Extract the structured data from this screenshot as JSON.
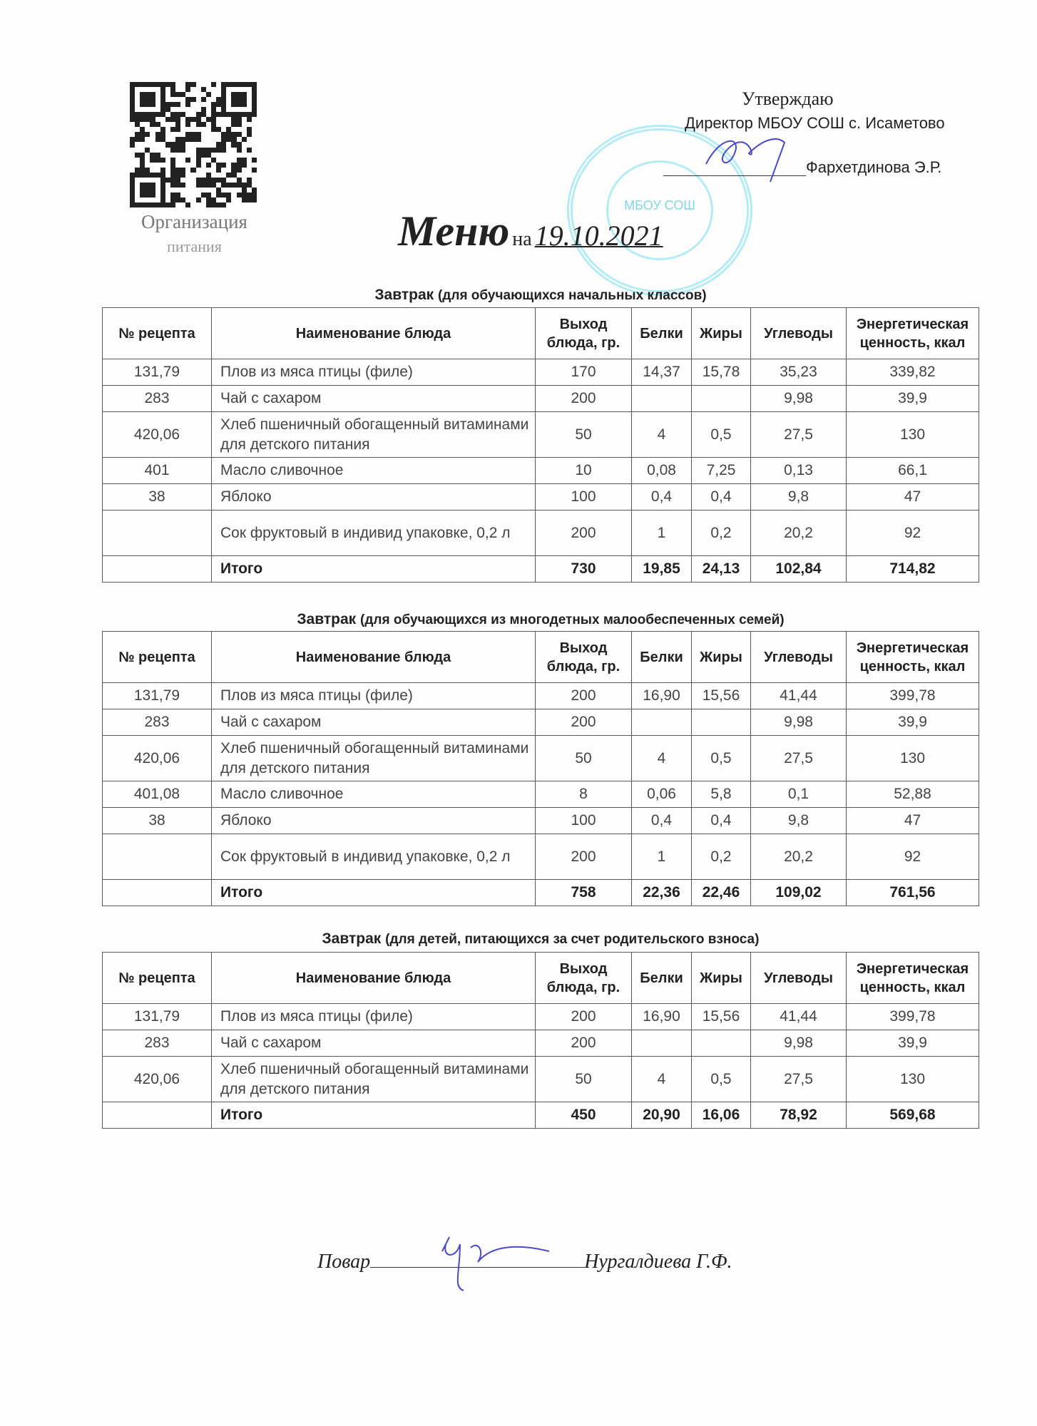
{
  "header": {
    "org_line1": "Организация",
    "org_line2": "питания",
    "approve": "Утверждаю",
    "director": "Директор МБОУ СОШ с. Исаметово",
    "director_name": "Фархетдинова Э.Р.",
    "stamp_text": "МБОУ СОШ",
    "title_word": "Меню",
    "title_na": "на",
    "date": "19.10.2021"
  },
  "columns": [
    "№ рецепта",
    "Наименование блюда",
    "Выход блюда, гр.",
    "Белки",
    "Жиры",
    "Углеводы",
    "Энергетическая ценность, ккал"
  ],
  "tables": [
    {
      "title": "Завтрак",
      "subtitle": "(для обучающихся начальных классов)",
      "rows": [
        [
          "131,79",
          "Плов из мяса птицы (филе)",
          "170",
          "14,37",
          "15,78",
          "35,23",
          "339,82"
        ],
        [
          "283",
          "Чай с сахаром",
          "200",
          "",
          "",
          "9,98",
          "39,9"
        ],
        [
          "420,06",
          "Хлеб пшеничный обогащенный витаминами для детского питания",
          "50",
          "4",
          "0,5",
          "27,5",
          "130"
        ],
        [
          "401",
          "Масло сливочное",
          "10",
          "0,08",
          "7,25",
          "0,13",
          "66,1"
        ],
        [
          "38",
          "Яблоко",
          "100",
          "0,4",
          "0,4",
          "9,8",
          "47"
        ],
        [
          "",
          "Сок фруктовый в индивид упаковке, 0,2 л",
          "200",
          "1",
          "0,2",
          "20,2",
          "92"
        ],
        [
          "",
          "Итого",
          "730",
          "19,85",
          "24,13",
          "102,84",
          "714,82"
        ]
      ]
    },
    {
      "title": "Завтрак",
      "subtitle": "(для обучающихся из многодетных малообеспеченных семей)",
      "rows": [
        [
          "131,79",
          "Плов из мяса птицы (филе)",
          "200",
          "16,90",
          "15,56",
          "41,44",
          "399,78"
        ],
        [
          "283",
          "Чай с сахаром",
          "200",
          "",
          "",
          "9,98",
          "39,9"
        ],
        [
          "420,06",
          "Хлеб пшеничный обогащенный витаминами для детского питания",
          "50",
          "4",
          "0,5",
          "27,5",
          "130"
        ],
        [
          "401,08",
          "Масло сливочное",
          "8",
          "0,06",
          "5,8",
          "0,1",
          "52,88"
        ],
        [
          "38",
          "Яблоко",
          "100",
          "0,4",
          "0,4",
          "9,8",
          "47"
        ],
        [
          "",
          "Сок фруктовый в индивид упаковке, 0,2 л",
          "200",
          "1",
          "0,2",
          "20,2",
          "92"
        ],
        [
          "",
          "Итого",
          "758",
          "22,36",
          "22,46",
          "109,02",
          "761,56"
        ]
      ]
    },
    {
      "title": "Завтрак",
      "subtitle": "(для детей, питающихся за счет родительского взноса)",
      "rows": [
        [
          "131,79",
          "Плов из мяса птицы (филе)",
          "200",
          "16,90",
          "15,56",
          "41,44",
          "399,78"
        ],
        [
          "283",
          "Чай с сахаром",
          "200",
          "",
          "",
          "9,98",
          "39,9"
        ],
        [
          "420,06",
          "Хлеб пшеничный обогащенный витаминами для детского питания",
          "50",
          "4",
          "0,5",
          "27,5",
          "130"
        ],
        [
          "",
          "Итого",
          "450",
          "20,90",
          "16,06",
          "78,92",
          "569,68"
        ]
      ]
    }
  ],
  "footer": {
    "cook_label": "Повар",
    "cook_name": "Нургалдиева Г.Ф."
  }
}
